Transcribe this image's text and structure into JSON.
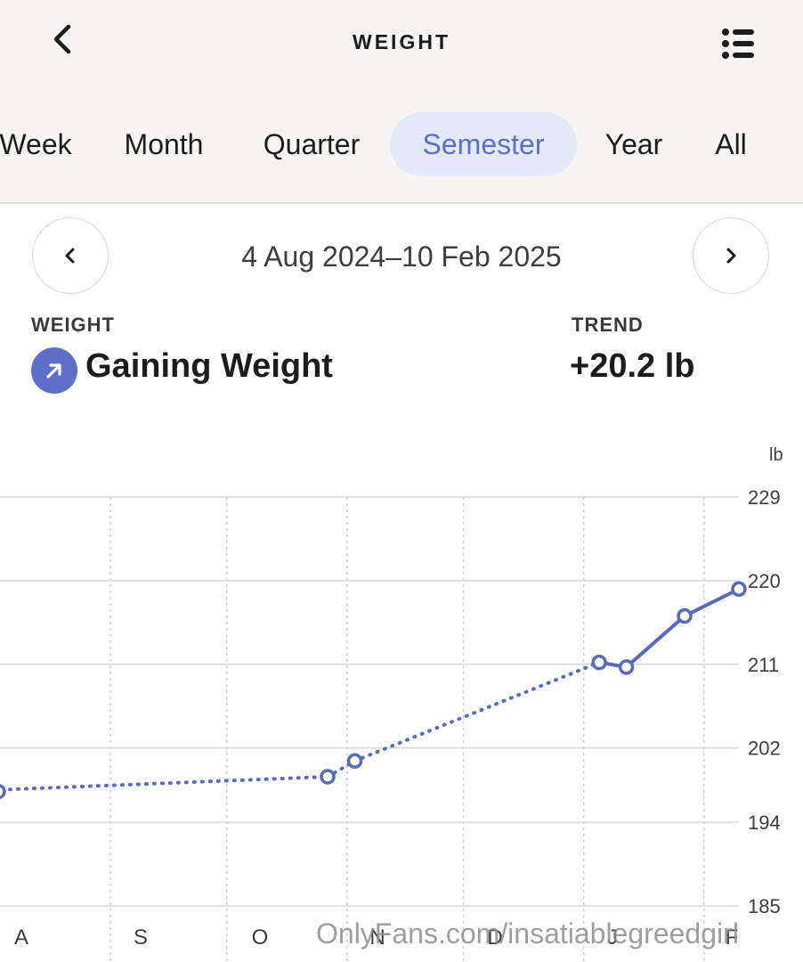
{
  "header": {
    "title": "WEIGHT",
    "tabs": [
      {
        "label": "Week",
        "active": false
      },
      {
        "label": "Month",
        "active": false
      },
      {
        "label": "Quarter",
        "active": false
      },
      {
        "label": "Semester",
        "active": true
      },
      {
        "label": "Year",
        "active": false
      },
      {
        "label": "All",
        "active": false
      }
    ]
  },
  "period": {
    "range": "4 Aug 2024–10 Feb 2025"
  },
  "summary": {
    "weight_label": "WEIGHT",
    "weight_status": "Gaining Weight",
    "trend_label": "TREND",
    "trend_value": "+20.2 lb"
  },
  "chart_data": {
    "type": "line",
    "ylabel": "lb",
    "y_ticks": [
      "229",
      "220",
      "211",
      "202",
      "194",
      "185"
    ],
    "ylim": [
      185,
      229
    ],
    "x_tick_labels": [
      "A",
      "S",
      "O",
      "N",
      "D",
      "J",
      "F"
    ],
    "series": [
      {
        "points": [
          {
            "date": "2024-08-04",
            "value": 197.5
          },
          {
            "date": "2024-10-27",
            "value": 198.9
          },
          {
            "date": "2024-11-03",
            "value": 200.6
          },
          {
            "date": "2025-01-05",
            "value": 211.2
          },
          {
            "date": "2025-01-12",
            "value": 210.7
          },
          {
            "date": "2025-01-27",
            "value": 216.2
          },
          {
            "date": "2025-02-10",
            "value": 219.1
          }
        ],
        "line_styles": [
          "dotted",
          "dotted",
          "dotted",
          "solid",
          "solid",
          "solid"
        ],
        "color": "#5a6bb8"
      }
    ],
    "grid": true
  },
  "watermark": "OnlyFans.com/insatiablegreedgirl",
  "colors": {
    "accent": "#5a6fc6",
    "series": "#5a6bb8",
    "header_bg": "#f6f5f3"
  }
}
